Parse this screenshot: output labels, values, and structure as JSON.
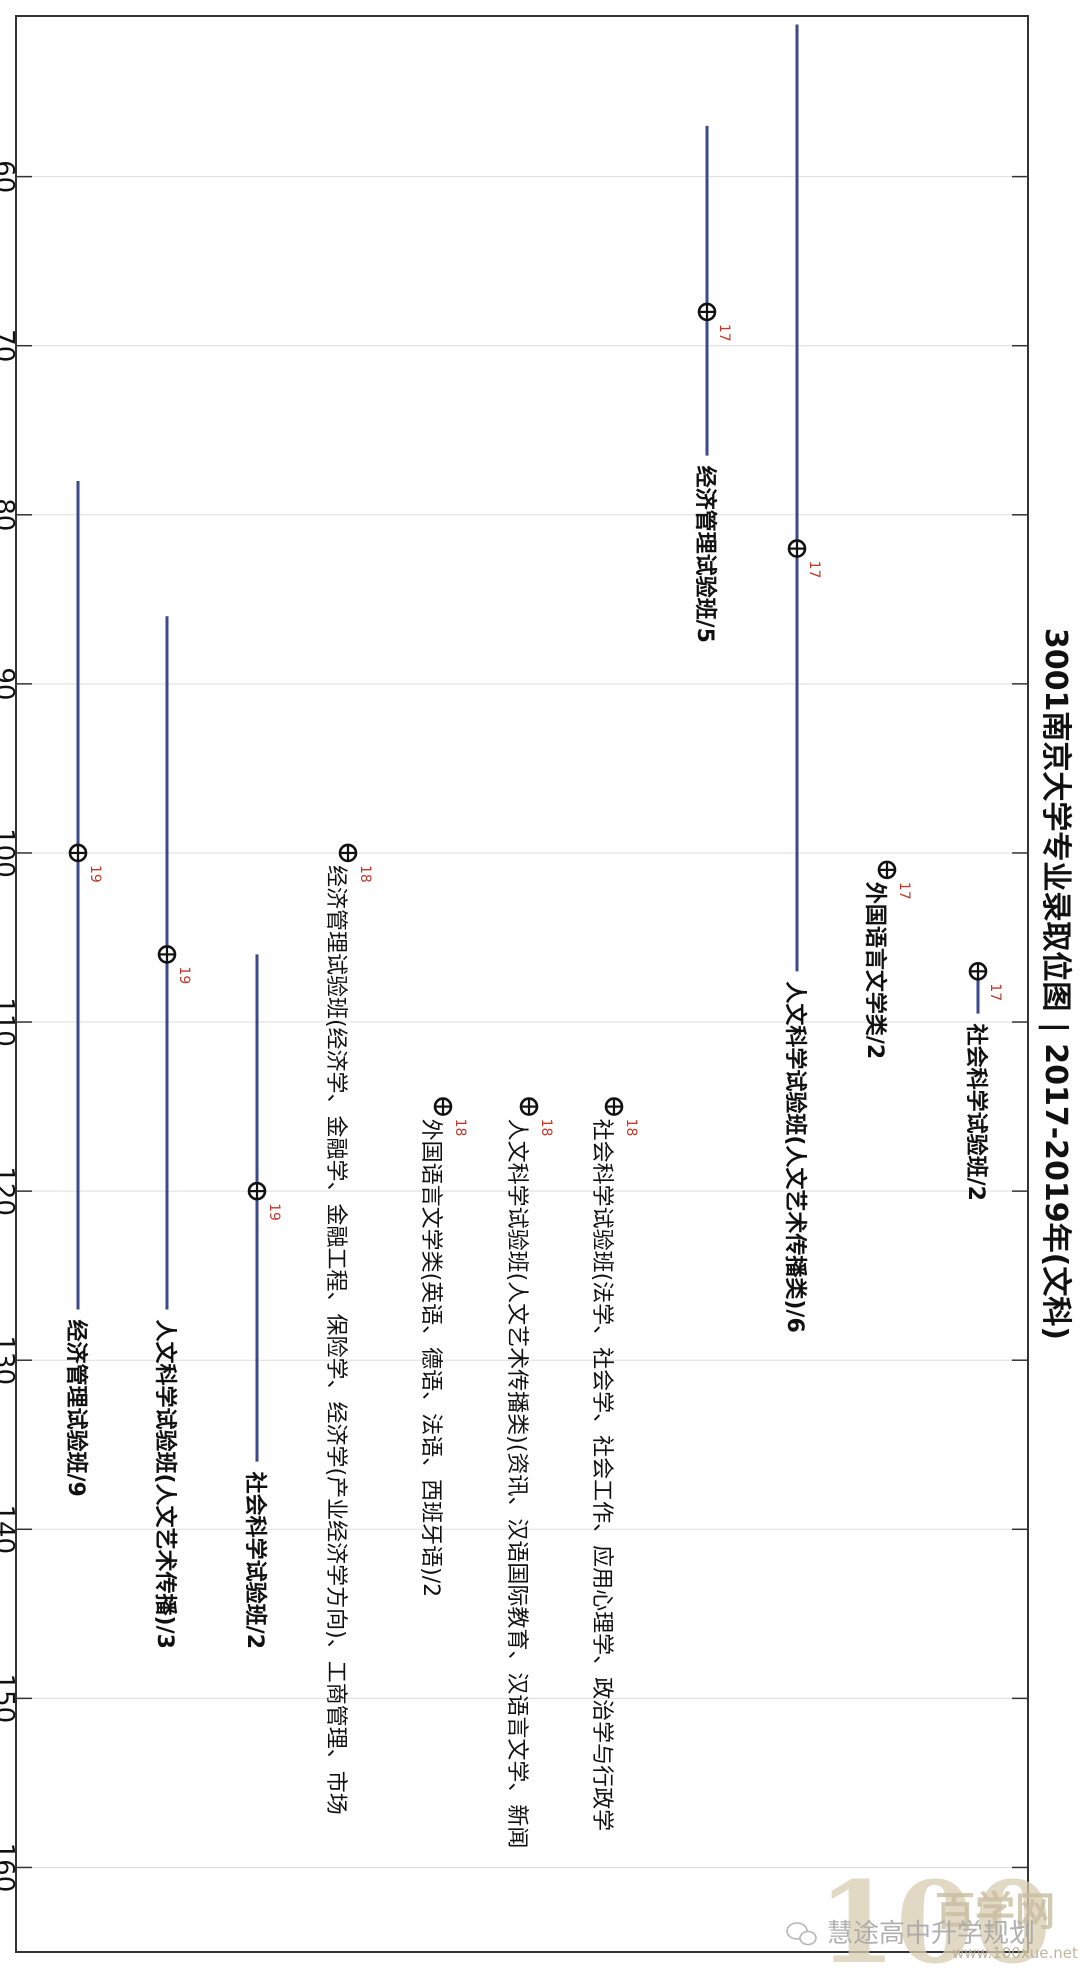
{
  "chart_data": {
    "type": "scatter",
    "orientation": "rotated-90",
    "title": "3001南京大学专业录取位图 | 2017-2019年(文科)",
    "xlabel": "",
    "ylabel": "",
    "value_axis": {
      "range": [
        50.5,
        165
      ],
      "ticks": [
        60,
        70,
        80,
        90,
        100,
        110,
        120,
        130,
        140,
        150,
        160
      ]
    },
    "grid": true,
    "colors": {
      "range_line": "#3a4a8c",
      "year_label": "#c0392b",
      "text": "#111111",
      "grid": "#dddddd",
      "frame": "#333333"
    },
    "series": [
      {
        "year": "17",
        "rank": 82,
        "min": 51,
        "max": 107,
        "label": "人文科学试验班(人文艺术传播类)/6",
        "label_bold": true,
        "column": "c1"
      },
      {
        "year": "17",
        "rank": 107,
        "min": 107,
        "max": 109.5,
        "label": "社会科学试验班/2",
        "label_bold": true,
        "column": "c0"
      },
      {
        "year": "17",
        "rank": 101,
        "min": null,
        "max": null,
        "label": "外国语言文学类/2",
        "label_bold": true,
        "column": "c2"
      },
      {
        "year": "17",
        "rank": 68,
        "min": 57,
        "max": 76.5,
        "label": "经济管理试验班/5",
        "label_bold": true,
        "column": "c3"
      },
      {
        "year": "18",
        "rank": 115,
        "min": null,
        "max": null,
        "label": "社会科学试验班(法学、社会学、社会工作、应用心理学、政治学与行政学",
        "label_bold": false,
        "column": "c4"
      },
      {
        "year": "18",
        "rank": 115,
        "min": null,
        "max": null,
        "label": "人文科学试验班(人文艺术传播类)(资讯、汉语国际教育、汉语言文学、新闻",
        "label_bold": false,
        "column": "c5"
      },
      {
        "year": "18",
        "rank": 115,
        "min": null,
        "max": null,
        "label": "外国语言文学类(英语、德语、法语、西班牙语)/2",
        "label_bold": false,
        "column": "c6"
      },
      {
        "year": "18",
        "rank": 100,
        "min": null,
        "max": null,
        "label": "经济管理试验班(经济学、金融学、金融工程、保险学、经济学(产业经济学方向)、工商管理、市场",
        "label_bold": false,
        "column": "c7"
      },
      {
        "year": "19",
        "rank": 120,
        "min": 106,
        "max": 136,
        "label": "社会科学试验班/2",
        "label_bold": true,
        "column": "c8"
      },
      {
        "year": "19",
        "rank": 106,
        "min": 86,
        "max": 127,
        "label": "人文科学试验班(人文艺术传播)/3",
        "label_bold": true,
        "column": "c9"
      },
      {
        "year": "19",
        "rank": 100,
        "min": 78,
        "max": 127,
        "label": "经济管理试验班/9",
        "label_bold": true,
        "column": "c10"
      }
    ]
  },
  "watermark": {
    "logo_number": "100",
    "site_name": "百学网",
    "url": "www.100xue.net",
    "account": "慧途高中升学规划"
  }
}
